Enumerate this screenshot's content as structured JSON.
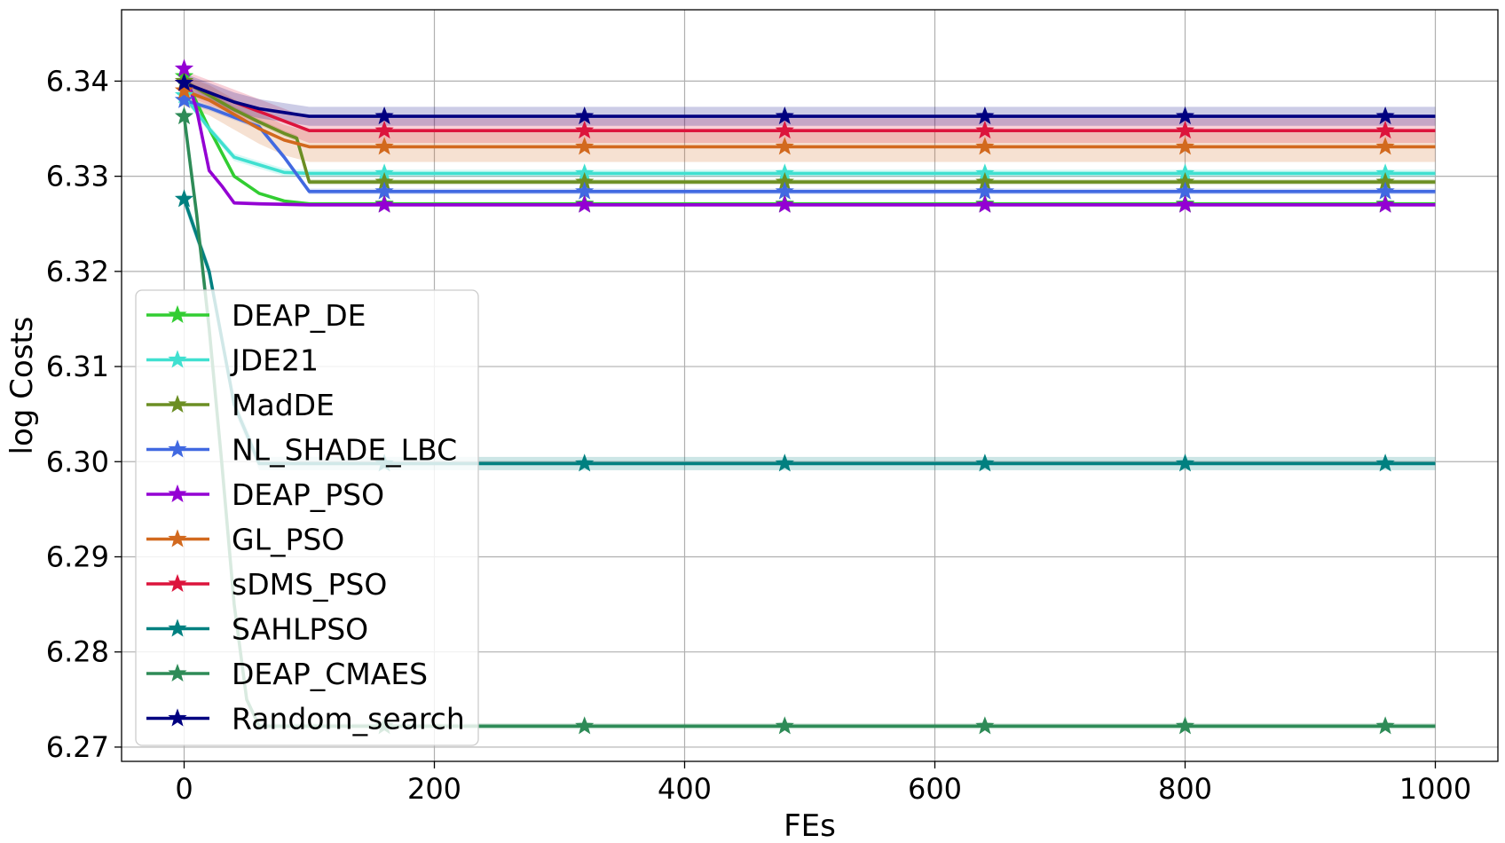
{
  "chart_data": {
    "type": "line",
    "title": "",
    "xlabel": "FEs",
    "ylabel": "log Costs",
    "xlim": [
      -50,
      1050
    ],
    "ylim": [
      6.2685,
      6.3475
    ],
    "xticks": [
      0,
      200,
      400,
      600,
      800,
      1000
    ],
    "xtick_labels": [
      "0",
      "200",
      "400",
      "600",
      "800",
      "1000"
    ],
    "yticks": [
      6.27,
      6.28,
      6.29,
      6.3,
      6.31,
      6.32,
      6.33,
      6.34
    ],
    "ytick_labels": [
      "6.27",
      "6.28",
      "6.29",
      "6.30",
      "6.31",
      "6.32",
      "6.33",
      "6.34"
    ],
    "grid": true,
    "legend_position": "center-left",
    "marker": "star",
    "marker_x": [
      0,
      160,
      320,
      480,
      640,
      800,
      960
    ],
    "series": [
      {
        "name": "DEAP_DE",
        "color": "#32CD32",
        "x": [
          0,
          20,
          40,
          60,
          80,
          100,
          1000
        ],
        "y": [
          6.3405,
          6.335,
          6.33,
          6.3282,
          6.3274,
          6.3271,
          6.3271
        ],
        "band": 0.0
      },
      {
        "name": "JDE21",
        "color": "#40E0D0",
        "x": [
          0,
          20,
          40,
          60,
          80,
          100,
          1000
        ],
        "y": [
          6.3385,
          6.335,
          6.332,
          6.3312,
          6.3304,
          6.3303,
          6.3303
        ],
        "band": 0.0004
      },
      {
        "name": "MadDE",
        "color": "#6B8E23",
        "x": [
          0,
          20,
          40,
          60,
          80,
          90,
          100,
          1000
        ],
        "y": [
          6.34,
          6.3385,
          6.337,
          6.3357,
          6.3345,
          6.334,
          6.3294,
          6.3294
        ],
        "band": 0.0003
      },
      {
        "name": "NL_SHADE_LBC",
        "color": "#4169E1",
        "x": [
          0,
          20,
          40,
          60,
          80,
          100,
          1000
        ],
        "y": [
          6.338,
          6.3372,
          6.3362,
          6.3352,
          6.332,
          6.3284,
          6.3284
        ],
        "band": 0.0003
      },
      {
        "name": "DEAP_PSO",
        "color": "#9400D3",
        "x": [
          0,
          10,
          20,
          30,
          40,
          60,
          100,
          1000
        ],
        "y": [
          6.3413,
          6.337,
          6.3306,
          6.329,
          6.3272,
          6.3271,
          6.327,
          6.327
        ],
        "band": 0.0002
      },
      {
        "name": "GL_PSO",
        "color": "#D2691E",
        "x": [
          0,
          20,
          40,
          60,
          80,
          100,
          1000
        ],
        "y": [
          6.339,
          6.338,
          6.3365,
          6.335,
          6.3338,
          6.3331,
          6.3331
        ],
        "band": 0.0016
      },
      {
        "name": "sDMS_PSO",
        "color": "#DC143C",
        "x": [
          0,
          20,
          40,
          60,
          80,
          100,
          1000
        ],
        "y": [
          6.3398,
          6.3388,
          6.3378,
          6.3368,
          6.3358,
          6.3348,
          6.3348
        ],
        "band": 0.0013
      },
      {
        "name": "SAHLPSO",
        "color": "#008080",
        "x": [
          0,
          20,
          40,
          60,
          80,
          100,
          1000
        ],
        "y": [
          6.3276,
          6.32,
          6.306,
          6.2998,
          6.2998,
          6.2998,
          6.2998
        ],
        "band": 0.0007
      },
      {
        "name": "DEAP_CMAES",
        "color": "#2E8B57",
        "x": [
          0,
          10,
          20,
          30,
          40,
          50,
          60,
          70,
          1000
        ],
        "y": [
          6.3363,
          6.326,
          6.314,
          6.3,
          6.285,
          6.275,
          6.2722,
          6.2722,
          6.2722
        ],
        "band": 0.0003
      },
      {
        "name": "Random_search",
        "color": "#000080",
        "x": [
          0,
          20,
          40,
          60,
          80,
          100,
          1000
        ],
        "y": [
          6.3398,
          6.3388,
          6.3378,
          6.3371,
          6.3367,
          6.3363,
          6.3363
        ],
        "band": 0.001
      }
    ]
  }
}
